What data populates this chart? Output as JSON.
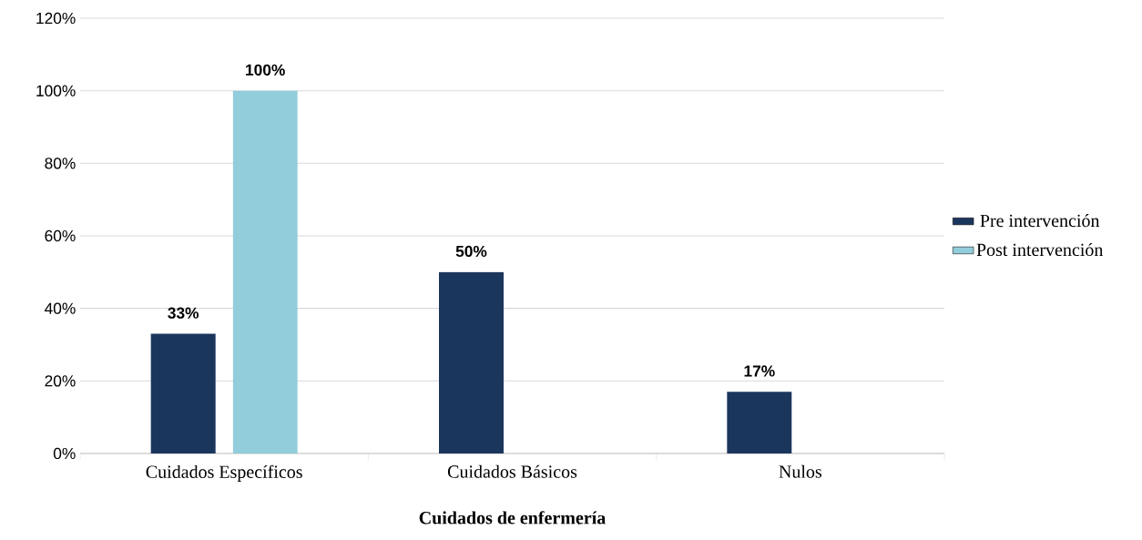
{
  "chart_data": {
    "type": "bar",
    "xlabel": "Cuidados de enfermería",
    "categories": [
      "Cuidados Específicos",
      "Cuidados Básicos",
      "Nulos"
    ],
    "series": [
      {
        "name": "Pre intervención",
        "color": "#1b365d",
        "values": [
          33,
          50,
          17
        ],
        "value_labels": [
          "33%",
          "50%",
          "17%"
        ]
      },
      {
        "name": "Post intervención",
        "color": "#92cddc",
        "values": [
          100,
          null,
          null
        ],
        "value_labels": [
          "100%",
          null,
          null
        ]
      }
    ],
    "ylim": [
      0,
      120
    ],
    "yticks": [
      {
        "value": 0,
        "label": "0%"
      },
      {
        "value": 20,
        "label": "20%"
      },
      {
        "value": 40,
        "label": "40%"
      },
      {
        "value": 60,
        "label": "60%"
      },
      {
        "value": 80,
        "label": "80%"
      },
      {
        "value": 100,
        "label": "100%"
      },
      {
        "value": 120,
        "label": "120%"
      }
    ],
    "grid": "y",
    "legend": "right"
  }
}
